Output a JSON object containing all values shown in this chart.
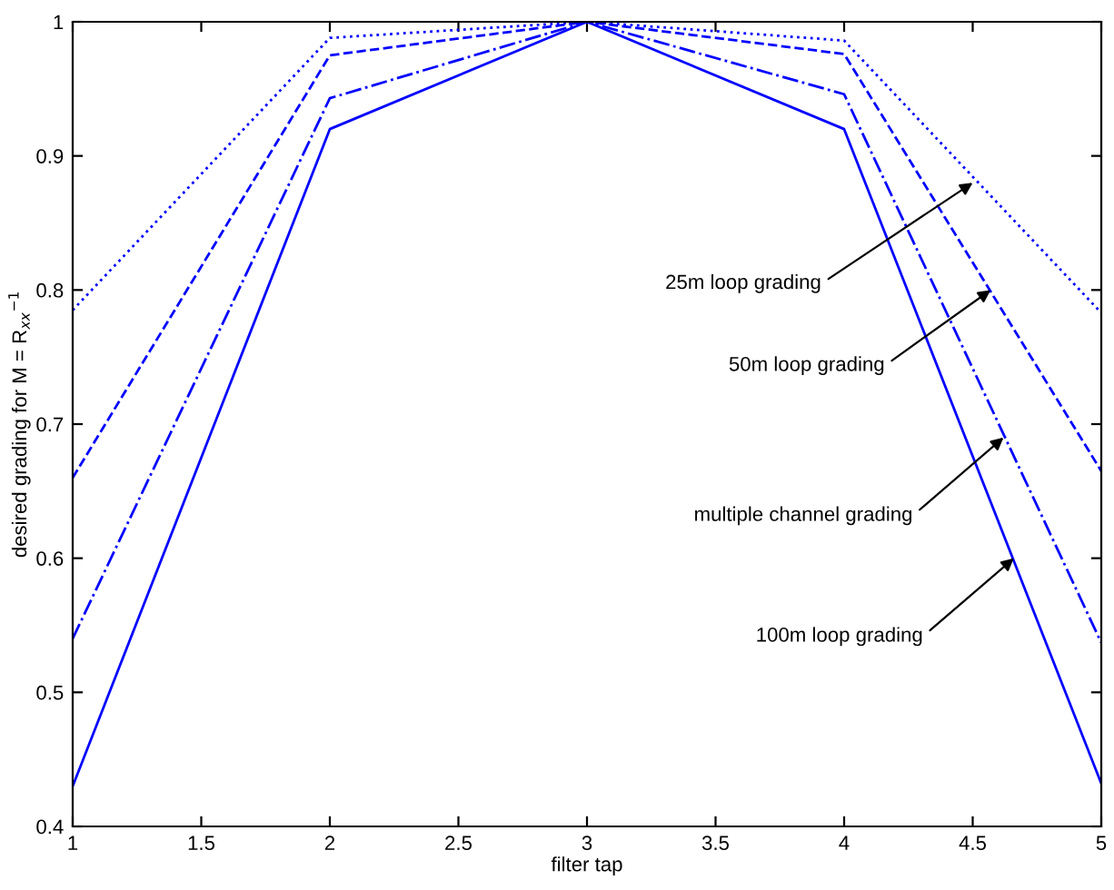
{
  "chart_data": {
    "type": "line",
    "xlabel": "filter tap",
    "ylabel": "desired grading for M = R$_{xx}$$^{−1}$",
    "x": [
      1,
      2,
      3,
      4,
      5
    ],
    "series": [
      {
        "color": "#0000ff",
        "line_style": "dotted",
        "values": [
          0.785,
          0.988,
          1.0,
          0.986,
          0.783
        ]
      },
      {
        "color": "#0000ff",
        "line_style": "dashed",
        "values": [
          0.66,
          0.975,
          1.0,
          0.976,
          0.665
        ]
      },
      {
        "color": "#0000ff",
        "line_style": "dashdot",
        "values": [
          0.54,
          0.943,
          1.0,
          0.946,
          0.537
        ]
      },
      {
        "color": "#0000ff",
        "line_style": "solid",
        "values": [
          0.43,
          0.92,
          1.0,
          0.92,
          0.432
        ]
      }
    ],
    "annotations": [
      {
        "text": "25m loop grading",
        "x": 4.5,
        "y": 0.88
      },
      {
        "text": "50m loop grading",
        "x": 4.57,
        "y": 0.8
      },
      {
        "text": "multiple channel grading",
        "x": 4.62,
        "y": 0.69
      },
      {
        "text": "100m loop grading",
        "x": 4.66,
        "y": 0.6
      }
    ],
    "xlim": [
      1,
      5
    ],
    "xticks": [
      1,
      1.5,
      2,
      2.5,
      3,
      3.5,
      4,
      4.5,
      5
    ],
    "ylim": [
      0.4,
      1
    ],
    "yticks": [
      0.4,
      0.5,
      0.6,
      0.7,
      0.8,
      0.9,
      1
    ],
    "grid": false,
    "legend": false,
    "marker": "none"
  }
}
